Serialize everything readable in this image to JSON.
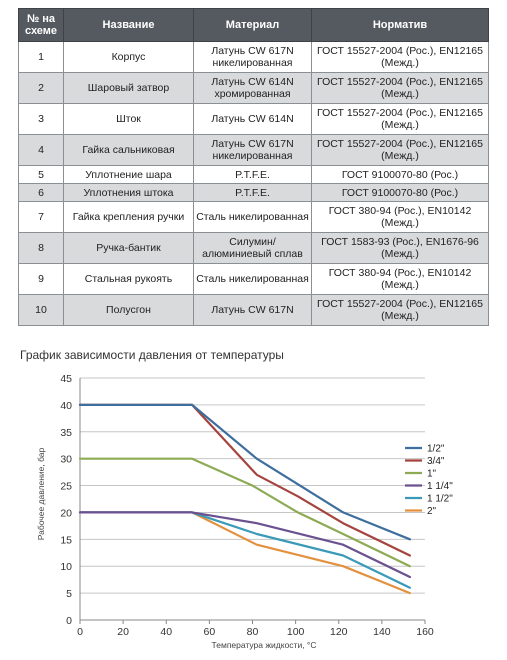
{
  "table": {
    "headers": [
      "№ на схеме",
      "Название",
      "Материал",
      "Норматив"
    ],
    "rows": [
      {
        "num": "1",
        "name": "Корпус",
        "material": "Латунь CW 617N никелированная",
        "standard": "ГОСТ 15527-2004 (Рос.), EN12165 (Межд.)"
      },
      {
        "num": "2",
        "name": "Шаровый затвор",
        "material": "Латунь CW 614N хромированная",
        "standard": "ГОСТ 15527-2004 (Рос.), EN12165 (Межд.)"
      },
      {
        "num": "3",
        "name": "Шток",
        "material": "Латунь CW 614N",
        "standard": "ГОСТ 15527-2004 (Рос.), EN12165 (Межд.)"
      },
      {
        "num": "4",
        "name": "Гайка сальниковая",
        "material": "Латунь CW 617N никелированная",
        "standard": "ГОСТ 15527-2004 (Рос.), EN12165 (Межд.)"
      },
      {
        "num": "5",
        "name": "Уплотнение шара",
        "material": "P.T.F.E.",
        "standard": "ГОСТ 9100070-80 (Рос.)"
      },
      {
        "num": "6",
        "name": "Уплотнения штока",
        "material": "P.T.F.E.",
        "standard": "ГОСТ 9100070-80 (Рос.)"
      },
      {
        "num": "7",
        "name": "Гайка крепления ручки",
        "material": "Сталь никелированная",
        "standard": "ГОСТ 380-94 (Рос.), EN10142 (Межд.)"
      },
      {
        "num": "8",
        "name": "Ручка-бантик",
        "material": "Силумин/ алюминиевый сплав",
        "standard": "ГОСТ 1583-93 (Рос.), EN1676-96 (Межд.)"
      },
      {
        "num": "9",
        "name": "Стальная рукоять",
        "material": "Сталь никелированная",
        "standard": "ГОСТ 380-94 (Рос.), EN10142 (Межд.)"
      },
      {
        "num": "10",
        "name": "Полусгон",
        "material": "Латунь CW 617N",
        "standard": "ГОСТ 15527-2004 (Рос.), EN12165 (Межд.)"
      }
    ]
  },
  "chart_heading": "График зависимости давления от температуры",
  "chart_data": {
    "type": "line",
    "xlabel": "Температура жидкости, °С",
    "ylabel": "Рабочее давление, бар",
    "xlim": [
      0,
      160
    ],
    "ylim": [
      0,
      45
    ],
    "x_ticks": [
      0,
      20,
      40,
      60,
      80,
      100,
      120,
      140,
      160
    ],
    "y_ticks": [
      0,
      5,
      10,
      15,
      20,
      25,
      30,
      35,
      40,
      45
    ],
    "grid": true,
    "legend_position": "right",
    "series": [
      {
        "name": "1/2\"",
        "color": "#3e6e9e",
        "points": [
          [
            0,
            40
          ],
          [
            52,
            40
          ],
          [
            82,
            30
          ],
          [
            122,
            20
          ],
          [
            153,
            15
          ]
        ]
      },
      {
        "name": "3/4\"",
        "color": "#a5443e",
        "points": [
          [
            0,
            40
          ],
          [
            52,
            40
          ],
          [
            82,
            27
          ],
          [
            101,
            23
          ],
          [
            122,
            18
          ],
          [
            153,
            12
          ]
        ]
      },
      {
        "name": "1\"",
        "color": "#8cab54",
        "points": [
          [
            0,
            30
          ],
          [
            52,
            30
          ],
          [
            80,
            25
          ],
          [
            101,
            20
          ],
          [
            122,
            16
          ],
          [
            153,
            10
          ]
        ]
      },
      {
        "name": "1 1/4\"",
        "color": "#6b5190",
        "points": [
          [
            0,
            20
          ],
          [
            52,
            20
          ],
          [
            82,
            18
          ],
          [
            122,
            14
          ],
          [
            153,
            8
          ]
        ]
      },
      {
        "name": "1 1/2\"",
        "color": "#3a9ab8",
        "points": [
          [
            0,
            20
          ],
          [
            52,
            20
          ],
          [
            82,
            16
          ],
          [
            122,
            12
          ],
          [
            153,
            6
          ]
        ]
      },
      {
        "name": "2\"",
        "color": "#e3913e",
        "points": [
          [
            0,
            20
          ],
          [
            52,
            20
          ],
          [
            82,
            14
          ],
          [
            122,
            10
          ],
          [
            153,
            5
          ]
        ]
      }
    ]
  }
}
